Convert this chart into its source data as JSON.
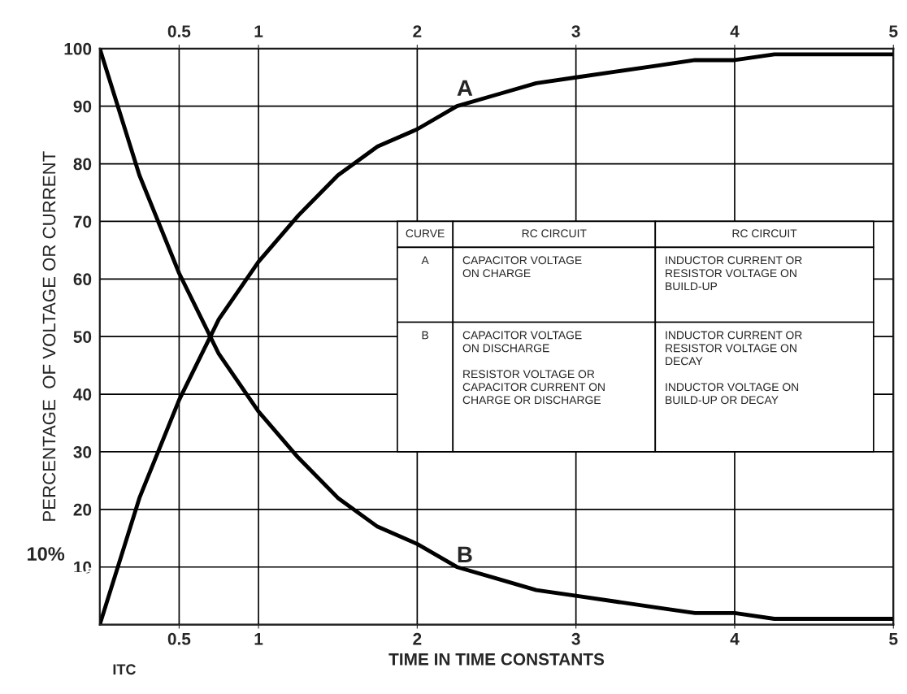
{
  "chart_data": {
    "type": "line",
    "xlabel": "TIME IN TIME CONSTANTS",
    "ylabel": "PERCENTAGE  OF VOLTAGE OR CURRENT",
    "x": [
      0,
      0.25,
      0.5,
      0.75,
      1,
      1.25,
      1.5,
      1.75,
      2,
      2.25,
      2.5,
      2.75,
      3,
      3.25,
      3.5,
      3.75,
      4,
      4.25,
      4.5,
      4.75,
      5
    ],
    "series": [
      {
        "color": "#000000",
        "values": [
          0,
          22,
          39,
          53,
          63,
          71,
          78,
          83,
          86,
          90,
          92,
          94,
          95,
          96,
          97,
          98,
          98,
          99,
          99,
          99,
          99
        ]
      },
      {
        "color": "#000000",
        "values": [
          100,
          78,
          61,
          47,
          37,
          29,
          22,
          17,
          14,
          10,
          8,
          6,
          5,
          4,
          3,
          2,
          2,
          1,
          1,
          1,
          1
        ]
      }
    ],
    "xlim": [
      0,
      5
    ],
    "ylim": [
      0,
      100
    ],
    "xticks": [
      0.5,
      1,
      2,
      3,
      4,
      5
    ],
    "x2lim": [
      0,
      5
    ],
    "x2ticks": [
      0.5,
      1,
      2,
      3,
      4,
      5
    ],
    "yticks": [
      10,
      20,
      30,
      40,
      50,
      60,
      70,
      80,
      90,
      100
    ],
    "grid": true,
    "legend": false,
    "marker": "none",
    "line_style": "solid",
    "annotations": [
      "CURVE",
      "RC CIRCUIT",
      "RC CIRCUIT",
      "A",
      "CAPACITOR VOLTAGE\nON CHARGE",
      "INDUCTOR CURRENT OR\nRESISTOR VOLTAGE ON\nBUILD-UP",
      "B",
      "CAPACITOR VOLTAGE\nON DISCHARGE\n\nRESISTOR VOLTAGE OR\nCAPACITOR CURRENT ON\nCHARGE OR DISCHARGE",
      "INDUCTOR CURRENT OR\nRESISTOR VOLTAGE ON\nDECAY\n\nINDUCTOR VOLTAGE ON\nBUILD-UP OR DECAY",
      "A",
      "B",
      "10%",
      "ITC"
    ]
  }
}
